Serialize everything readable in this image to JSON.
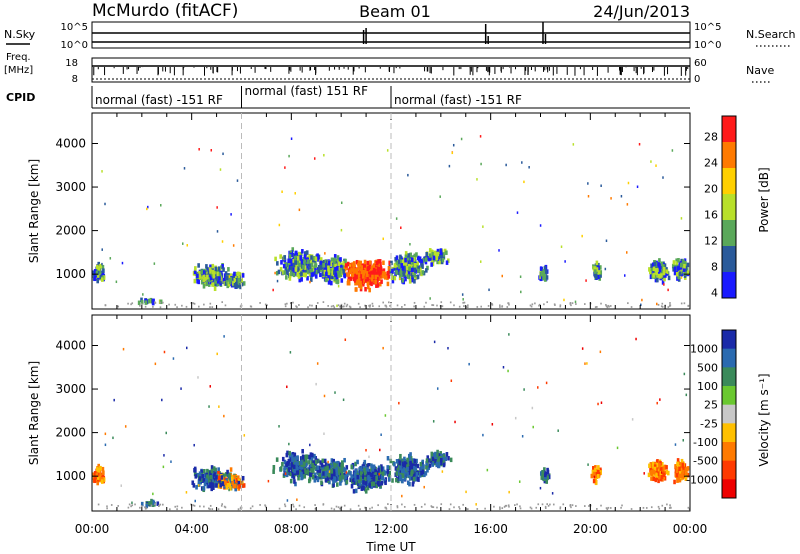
{
  "header": {
    "station": "McMurdo (fitACF)",
    "beam": "Beam 01",
    "date": "24/Jun/2013"
  },
  "status_panel": {
    "nsky_label": "N.Sky",
    "nsky_ticks": [
      "10^5",
      "10^0"
    ],
    "nsearch_label": "N.Search",
    "nsearch_ticks": [
      "10^5",
      "10^0"
    ],
    "freq_label": "Freq.",
    "freq_unit": "[MHz]",
    "freq_ticks": [
      "18",
      "8"
    ],
    "nave_label": "Nave",
    "nave_ticks": [
      "60",
      "0"
    ],
    "cpid_label": "CPID",
    "cpid_segments": [
      {
        "label": "normal (fast) -151 RF",
        "start_hour": 0,
        "end_hour": 6
      },
      {
        "label": "normal (fast) 151 RF",
        "start_hour": 6,
        "end_hour": 12
      },
      {
        "label": "normal (fast) -151 RF",
        "start_hour": 12,
        "end_hour": 24
      }
    ]
  },
  "chart_data": [
    {
      "type": "heatmap",
      "quantity": "power",
      "ylabel": "Slant Range [km]",
      "yticks": [
        1000,
        2000,
        3000,
        4000
      ],
      "ylim": [
        200,
        4700
      ],
      "xlim_hours": [
        0,
        24
      ],
      "colorbar": {
        "label": "Power [dB]",
        "ticks": [
          "28",
          "24",
          "20",
          "16",
          "12",
          "8",
          "4"
        ],
        "colors": [
          "#ff1a1a",
          "#ff7a00",
          "#ffd000",
          "#b8e02a",
          "#5aa85a",
          "#2a5a9a",
          "#1a1aff"
        ]
      }
    },
    {
      "type": "heatmap",
      "quantity": "velocity",
      "xlabel": "Time UT",
      "xticks": [
        "00:00",
        "04:00",
        "08:00",
        "12:00",
        "16:00",
        "20:00",
        "00:00"
      ],
      "ylabel": "Slant Range [km]",
      "yticks": [
        1000,
        2000,
        3000,
        4000
      ],
      "ylim": [
        200,
        4700
      ],
      "xlim_hours": [
        0,
        24
      ],
      "colorbar": {
        "label": "Velocity [m s⁻¹]",
        "ticks": [
          "1000",
          "500",
          "100",
          "25",
          "-25",
          "-100",
          "-500",
          "-1000"
        ],
        "colors": [
          "#1a2aa8",
          "#2a6ab0",
          "#3a8a5a",
          "#6ac830",
          "#c8c8c8",
          "#ffc000",
          "#ff7a00",
          "#ff3a00",
          "#ee0000"
        ]
      }
    }
  ]
}
